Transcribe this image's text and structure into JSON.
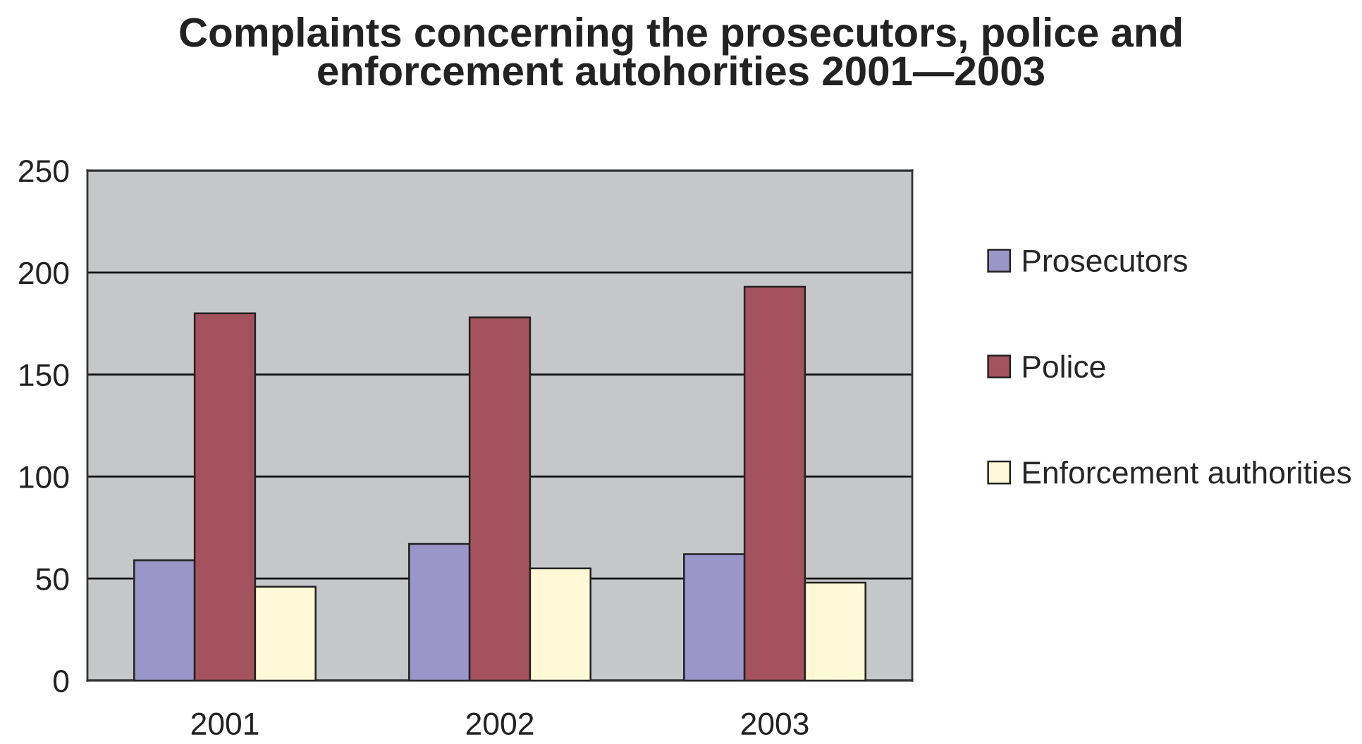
{
  "chart_data": {
    "type": "bar",
    "title": "Complaints concerning the prosecutors, police and\nenforcement autohorities 2001—2003",
    "categories": [
      "2001",
      "2002",
      "2003"
    ],
    "series": [
      {
        "name": "Prosecutors",
        "color": "#9b96c8",
        "values": [
          59,
          67,
          62
        ]
      },
      {
        "name": "Police",
        "color": "#a5525f",
        "values": [
          180,
          178,
          193
        ]
      },
      {
        "name": "Enforcement authorities",
        "color": "#fff9d7",
        "values": [
          46,
          55,
          48
        ]
      }
    ],
    "ylim": [
      0,
      250
    ],
    "yticks": [
      0,
      50,
      100,
      150,
      200,
      250
    ],
    "grid": "y",
    "legend": "right"
  }
}
